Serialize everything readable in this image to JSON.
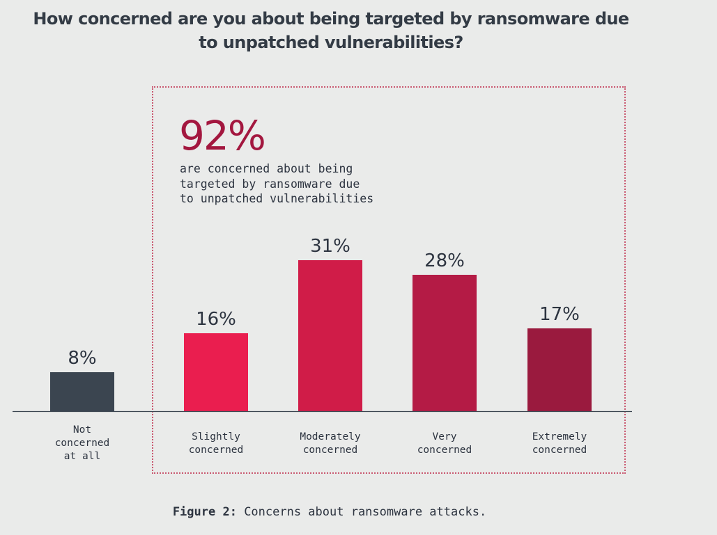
{
  "title": "How concerned are you about being targeted by ransomware due to unpatched vulnerabilities?",
  "highlight": {
    "stat": "92%",
    "description": "are concerned about being\ntargeted by ransomware due\nto unpatched vulnerabilities"
  },
  "caption": {
    "label": "Figure 2:",
    "text": "Concerns about ransomware attacks."
  },
  "chart_data": {
    "type": "bar",
    "categories": [
      "Not concerned at all",
      "Slightly concerned",
      "Moderately concerned",
      "Very concerned",
      "Extremely concerned"
    ],
    "category_lines": [
      [
        "Not",
        "concerned",
        "at all"
      ],
      [
        "Slightly",
        "concerned"
      ],
      [
        "Moderately",
        "concerned"
      ],
      [
        "Very",
        "concerned"
      ],
      [
        "Extremely",
        "concerned"
      ]
    ],
    "values": [
      8,
      16,
      31,
      28,
      17
    ],
    "value_labels": [
      "8%",
      "16%",
      "31%",
      "28%",
      "17%"
    ],
    "colors": [
      "#3b4550",
      "#ea1e4f",
      "#d01c48",
      "#b41b45",
      "#9a1a3e"
    ],
    "ylim": [
      0,
      31
    ],
    "grid": false,
    "legend": "none"
  }
}
